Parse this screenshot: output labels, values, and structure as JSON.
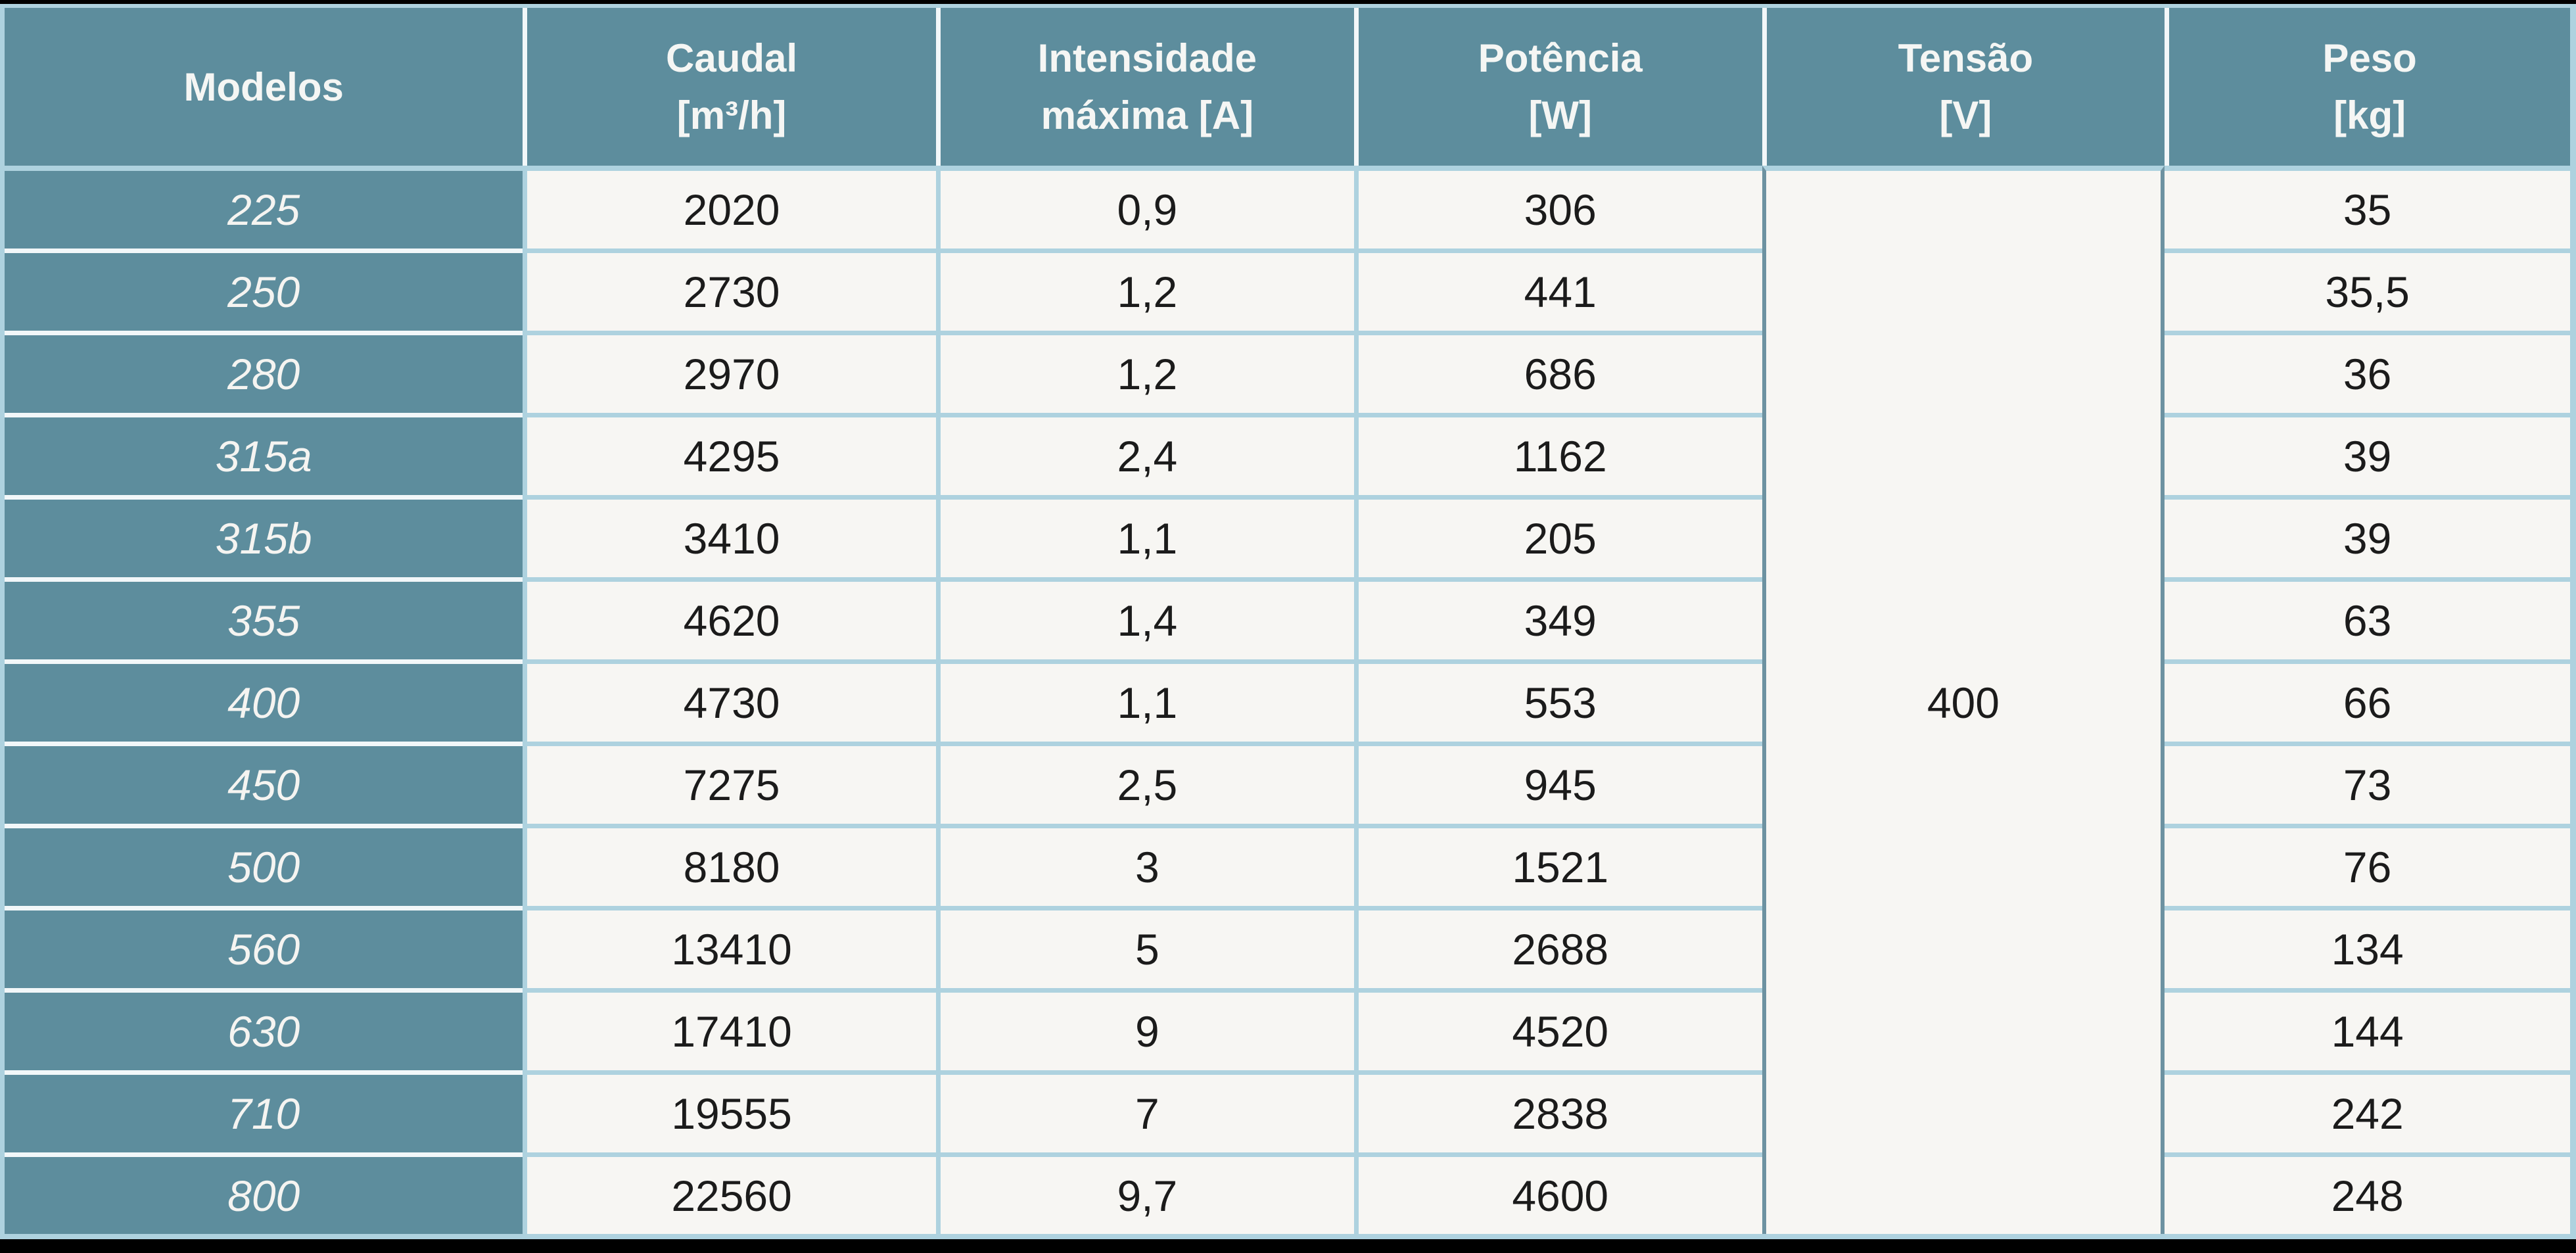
{
  "table": {
    "title": "tabela-especificacoes-modelos",
    "columns": [
      {
        "label": "Modelos"
      },
      {
        "label": "Caudal\n[m³/h]"
      },
      {
        "label": "Intensidade\nmáxima [A]"
      },
      {
        "label": "Potência\n[W]"
      },
      {
        "label": "Tensão\n[V]"
      },
      {
        "label": "Peso\n[kg]"
      }
    ],
    "tensao_value": "400",
    "rows": [
      {
        "model": "225",
        "caudal": "2020",
        "intensidade": "0,9",
        "potencia": "306",
        "peso": "35"
      },
      {
        "model": "250",
        "caudal": "2730",
        "intensidade": "1,2",
        "potencia": "441",
        "peso": "35,5"
      },
      {
        "model": "280",
        "caudal": "2970",
        "intensidade": "1,2",
        "potencia": "686",
        "peso": "36"
      },
      {
        "model": "315a",
        "caudal": "4295",
        "intensidade": "2,4",
        "potencia": "1162",
        "peso": "39"
      },
      {
        "model": "315b",
        "caudal": "3410",
        "intensidade": "1,1",
        "potencia": "205",
        "peso": "39"
      },
      {
        "model": "355",
        "caudal": "4620",
        "intensidade": "1,4",
        "potencia": "349",
        "peso": "63"
      },
      {
        "model": "400",
        "caudal": "4730",
        "intensidade": "1,1",
        "potencia": "553",
        "peso": "66"
      },
      {
        "model": "450",
        "caudal": "7275",
        "intensidade": "2,5",
        "potencia": "945",
        "peso": "73"
      },
      {
        "model": "500",
        "caudal": "8180",
        "intensidade": "3",
        "potencia": "1521",
        "peso": "76"
      },
      {
        "model": "560",
        "caudal": "13410",
        "intensidade": "5",
        "potencia": "2688",
        "peso": "134"
      },
      {
        "model": "630",
        "caudal": "17410",
        "intensidade": "9",
        "potencia": "4520",
        "peso": "144"
      },
      {
        "model": "710",
        "caudal": "19555",
        "intensidade": "7",
        "potencia": "2838",
        "peso": "242"
      },
      {
        "model": "800",
        "caudal": "22560",
        "intensidade": "9,7",
        "potencia": "4600",
        "peso": "248"
      }
    ],
    "colors": {
      "header_teal": "#5d8d9d",
      "cell_offwhite": "#f7f6f3",
      "separator_light_blue": "#aed2df",
      "separator_white": "#f2f7f9",
      "tensao_border": "#6d92a1",
      "bar_black": "#000000",
      "header_text": "#f5f6f4",
      "data_text": "#1b1b1b"
    }
  }
}
